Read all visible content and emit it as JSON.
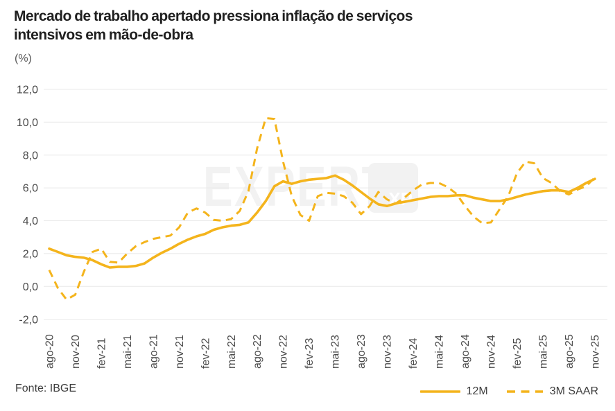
{
  "title": "Mercado de trabalho apertado pressiona inflação de serviços intensivos em mão-de-obra",
  "subtitle": "(%)",
  "source": "Fonte: IBGE",
  "watermark": {
    "text": "EXPERT",
    "badge": "XP"
  },
  "legend": [
    {
      "label": "12M",
      "style": "solid"
    },
    {
      "label": "3M SAAR",
      "style": "dashed"
    }
  ],
  "colors": {
    "line": "#F4B41C",
    "grid": "#E8E8E8",
    "axis_text": "#4A4A4A",
    "title_text": "#1F1F1F",
    "footer_text": "#3D3D3D",
    "watermark": "#F2F2F2"
  },
  "chart_data": {
    "type": "line",
    "title": "Mercado de trabalho apertado pressiona inflação de serviços intensivos em mão-de-obra",
    "ylabel": "(%)",
    "x_unit": "month",
    "x_start": "ago-20",
    "x_end": "nov-25",
    "n_points": 64,
    "tick_every": 3,
    "x_tick_labels": [
      "ago-20",
      "nov-20",
      "fev-21",
      "mai-21",
      "ago-21",
      "nov-21",
      "fev-22",
      "mai-22",
      "ago-22",
      "nov-22",
      "fev-23",
      "mai-23",
      "ago-23",
      "nov-23",
      "fev-24",
      "mai-24",
      "ago-24",
      "nov-24",
      "fev-25",
      "mai-25",
      "ago-25",
      "nov-25"
    ],
    "ylim": [
      -2,
      12
    ],
    "y_tick_step": 2,
    "y_tick_labels": [
      "12,0",
      "10,0",
      "8,0",
      "6,0",
      "4,0",
      "2,0",
      "0,0",
      "-2,0"
    ],
    "grid": "horizontal",
    "legend_position": "bottom-right",
    "series": [
      {
        "name": "12M",
        "style": "solid",
        "values": [
          2.3,
          2.1,
          1.9,
          1.8,
          1.75,
          1.6,
          1.35,
          1.15,
          1.2,
          1.2,
          1.25,
          1.4,
          1.75,
          2.05,
          2.3,
          2.6,
          2.85,
          3.05,
          3.2,
          3.45,
          3.6,
          3.7,
          3.75,
          3.9,
          4.5,
          5.2,
          6.1,
          6.4,
          6.25,
          6.4,
          6.5,
          6.55,
          6.6,
          6.75,
          6.5,
          6.15,
          5.75,
          5.35,
          5.0,
          4.9,
          5.05,
          5.15,
          5.25,
          5.35,
          5.45,
          5.5,
          5.5,
          5.55,
          5.55,
          5.4,
          5.3,
          5.2,
          5.2,
          5.3,
          5.45,
          5.6,
          5.7,
          5.8,
          5.85,
          5.85,
          5.75,
          6.0,
          6.3,
          6.55
        ]
      },
      {
        "name": "3M SAAR",
        "style": "dashed",
        "values": [
          1.0,
          -0.1,
          -0.8,
          -0.5,
          0.9,
          2.1,
          2.3,
          1.5,
          1.45,
          2.0,
          2.45,
          2.7,
          2.9,
          3.0,
          3.1,
          3.6,
          4.5,
          4.75,
          4.5,
          4.05,
          4.0,
          4.1,
          4.6,
          5.8,
          8.4,
          10.25,
          10.2,
          7.6,
          5.5,
          4.35,
          4.0,
          5.5,
          5.7,
          5.65,
          5.5,
          5.1,
          4.4,
          4.9,
          5.75,
          5.3,
          5.05,
          5.4,
          5.85,
          6.2,
          6.3,
          6.3,
          6.05,
          5.65,
          4.9,
          4.25,
          3.85,
          3.9,
          4.7,
          5.5,
          6.9,
          7.6,
          7.5,
          6.6,
          6.3,
          5.8,
          5.6,
          5.9,
          6.1,
          6.65
        ]
      }
    ]
  }
}
